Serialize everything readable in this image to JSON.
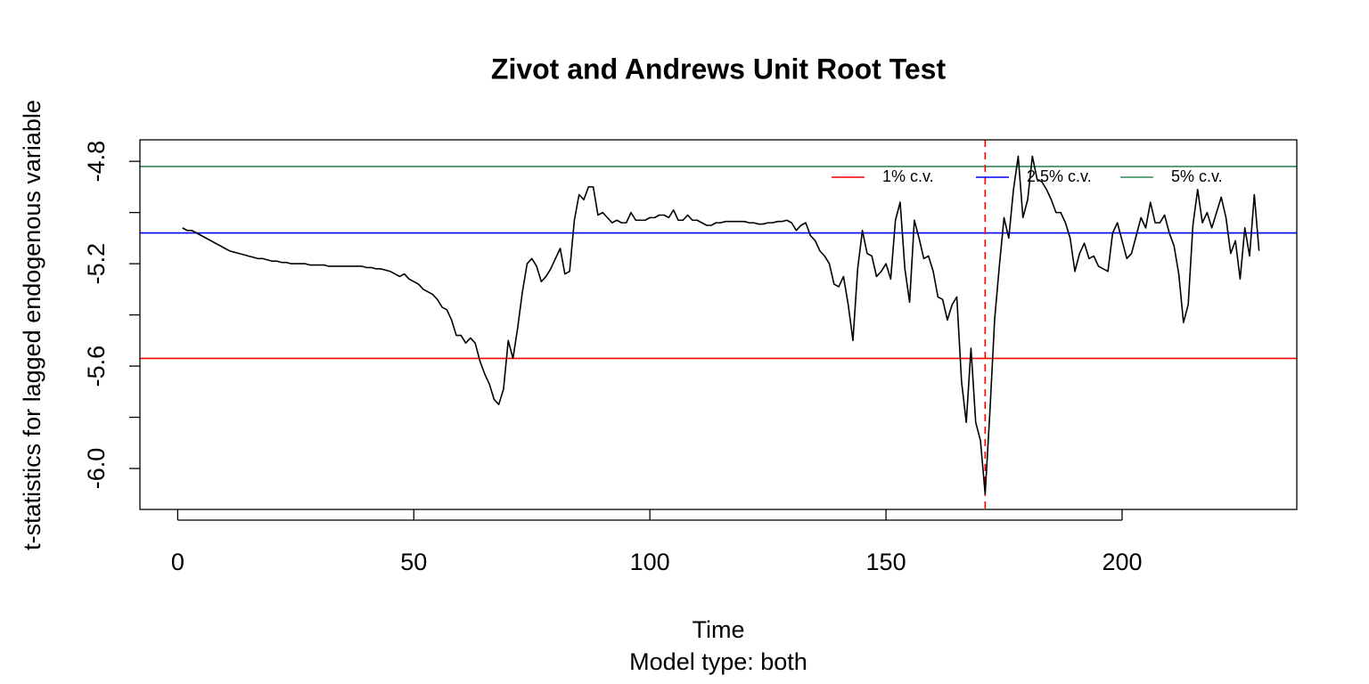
{
  "chart_data": {
    "type": "line",
    "title": "Zivot and Andrews Unit Root Test",
    "xlabel": "Time",
    "subtitle": "Model type: both",
    "ylabel": "t-statistics for lagged endogenous variable",
    "x": [
      1,
      2,
      3,
      4,
      5,
      6,
      7,
      8,
      9,
      10,
      11,
      12,
      13,
      14,
      15,
      16,
      17,
      18,
      19,
      20,
      21,
      22,
      23,
      24,
      25,
      26,
      27,
      28,
      29,
      30,
      31,
      32,
      33,
      34,
      35,
      36,
      37,
      38,
      39,
      40,
      41,
      42,
      43,
      44,
      45,
      46,
      47,
      48,
      49,
      50,
      51,
      52,
      53,
      54,
      55,
      56,
      57,
      58,
      59,
      60,
      61,
      62,
      63,
      64,
      65,
      66,
      67,
      68,
      69,
      70,
      71,
      72,
      73,
      74,
      75,
      76,
      77,
      78,
      79,
      80,
      81,
      82,
      83,
      84,
      85,
      86,
      87,
      88,
      89,
      90,
      91,
      92,
      93,
      94,
      95,
      96,
      97,
      98,
      99,
      100,
      101,
      102,
      103,
      104,
      105,
      106,
      107,
      108,
      109,
      110,
      111,
      112,
      113,
      114,
      115,
      116,
      117,
      118,
      119,
      120,
      121,
      122,
      123,
      124,
      125,
      126,
      127,
      128,
      129,
      130,
      131,
      132,
      133,
      134,
      135,
      136,
      137,
      138,
      139,
      140,
      141,
      142,
      143,
      144,
      145,
      146,
      147,
      148,
      149,
      150,
      151,
      152,
      153,
      154,
      155,
      156,
      157,
      158,
      159,
      160,
      161,
      162,
      163,
      164,
      165,
      166,
      167,
      168,
      169,
      170,
      171,
      172,
      173,
      174,
      175,
      176,
      177,
      178,
      179,
      180,
      181,
      182,
      183,
      184,
      185,
      186,
      187,
      188,
      189,
      190,
      191,
      192,
      193,
      194,
      195,
      196,
      197,
      198,
      199,
      200,
      201,
      202,
      203,
      204,
      205,
      206,
      207,
      208,
      209,
      210,
      211,
      212,
      213,
      214,
      215,
      216,
      217,
      218,
      219,
      220,
      221,
      222,
      223,
      224,
      225,
      226,
      227,
      228,
      229
    ],
    "series": [
      {
        "color": "#000000",
        "values": [
          -5.06,
          -5.07,
          -5.07,
          -5.08,
          -5.09,
          -5.1,
          -5.11,
          -5.12,
          -5.13,
          -5.14,
          -5.15,
          -5.155,
          -5.16,
          -5.165,
          -5.17,
          -5.175,
          -5.18,
          -5.18,
          -5.185,
          -5.19,
          -5.19,
          -5.195,
          -5.195,
          -5.2,
          -5.2,
          -5.2,
          -5.2,
          -5.205,
          -5.205,
          -5.205,
          -5.205,
          -5.21,
          -5.21,
          -5.21,
          -5.21,
          -5.21,
          -5.21,
          -5.21,
          -5.21,
          -5.215,
          -5.215,
          -5.22,
          -5.22,
          -5.225,
          -5.23,
          -5.24,
          -5.25,
          -5.24,
          -5.26,
          -5.27,
          -5.28,
          -5.3,
          -5.31,
          -5.32,
          -5.34,
          -5.37,
          -5.38,
          -5.42,
          -5.48,
          -5.48,
          -5.51,
          -5.49,
          -5.51,
          -5.58,
          -5.63,
          -5.67,
          -5.73,
          -5.75,
          -5.69,
          -5.5,
          -5.57,
          -5.45,
          -5.31,
          -5.2,
          -5.18,
          -5.21,
          -5.27,
          -5.25,
          -5.22,
          -5.18,
          -5.14,
          -5.24,
          -5.23,
          -5.03,
          -4.93,
          -4.95,
          -4.9,
          -4.9,
          -5.01,
          -5.0,
          -5.02,
          -5.04,
          -5.03,
          -5.04,
          -5.04,
          -5.0,
          -5.03,
          -5.03,
          -5.03,
          -5.02,
          -5.02,
          -5.01,
          -5.01,
          -5.02,
          -4.99,
          -5.03,
          -5.03,
          -5.01,
          -5.03,
          -5.03,
          -5.04,
          -5.05,
          -5.05,
          -5.04,
          -5.04,
          -5.035,
          -5.035,
          -5.035,
          -5.035,
          -5.035,
          -5.04,
          -5.04,
          -5.045,
          -5.045,
          -5.04,
          -5.04,
          -5.035,
          -5.035,
          -5.03,
          -5.04,
          -5.07,
          -5.05,
          -5.04,
          -5.09,
          -5.11,
          -5.15,
          -5.17,
          -5.2,
          -5.28,
          -5.29,
          -5.25,
          -5.36,
          -5.5,
          -5.22,
          -5.07,
          -5.16,
          -5.17,
          -5.25,
          -5.23,
          -5.2,
          -5.26,
          -5.03,
          -4.96,
          -5.22,
          -5.35,
          -5.03,
          -5.1,
          -5.18,
          -5.17,
          -5.23,
          -5.33,
          -5.34,
          -5.42,
          -5.36,
          -5.33,
          -5.66,
          -5.82,
          -5.53,
          -5.82,
          -5.89,
          -6.1,
          -5.78,
          -5.42,
          -5.21,
          -5.02,
          -5.1,
          -4.91,
          -4.78,
          -5.02,
          -4.95,
          -4.78,
          -4.87,
          -4.88,
          -4.91,
          -4.95,
          -5.0,
          -5.0,
          -5.04,
          -5.1,
          -5.23,
          -5.16,
          -5.12,
          -5.18,
          -5.17,
          -5.21,
          -5.22,
          -5.23,
          -5.08,
          -5.04,
          -5.11,
          -5.18,
          -5.16,
          -5.09,
          -5.02,
          -5.06,
          -4.96,
          -5.04,
          -5.04,
          -5.01,
          -5.08,
          -5.13,
          -5.24,
          -5.43,
          -5.36,
          -5.05,
          -4.91,
          -5.04,
          -5.0,
          -5.06,
          -5.0,
          -4.94,
          -5.02,
          -5.16,
          -5.11,
          -5.26,
          -5.06,
          -5.17,
          -4.93,
          -5.15
        ]
      }
    ],
    "hlines": [
      {
        "name": "1% c.v.",
        "value": -5.57,
        "color": "#ff0000"
      },
      {
        "name": "2.5% c.v.",
        "value": -5.08,
        "color": "#0000ff"
      },
      {
        "name": "5% c.v.",
        "value": -4.82,
        "color": "#2e8b57"
      }
    ],
    "vlines": [
      {
        "x": 171,
        "color": "#ff0000",
        "dashed": true
      }
    ],
    "xlim": [
      -8,
      237
    ],
    "ylim": [
      -6.16,
      -4.716
    ],
    "xticks": [
      0,
      50,
      100,
      150,
      200
    ],
    "yticks": [
      -4.8,
      -5.2,
      -5.6,
      {
        "value": -6.0,
        "label": "-6.0"
      }
    ],
    "yminorticks": [
      -5.0,
      -5.4,
      -5.8
    ],
    "legend": "topright"
  }
}
